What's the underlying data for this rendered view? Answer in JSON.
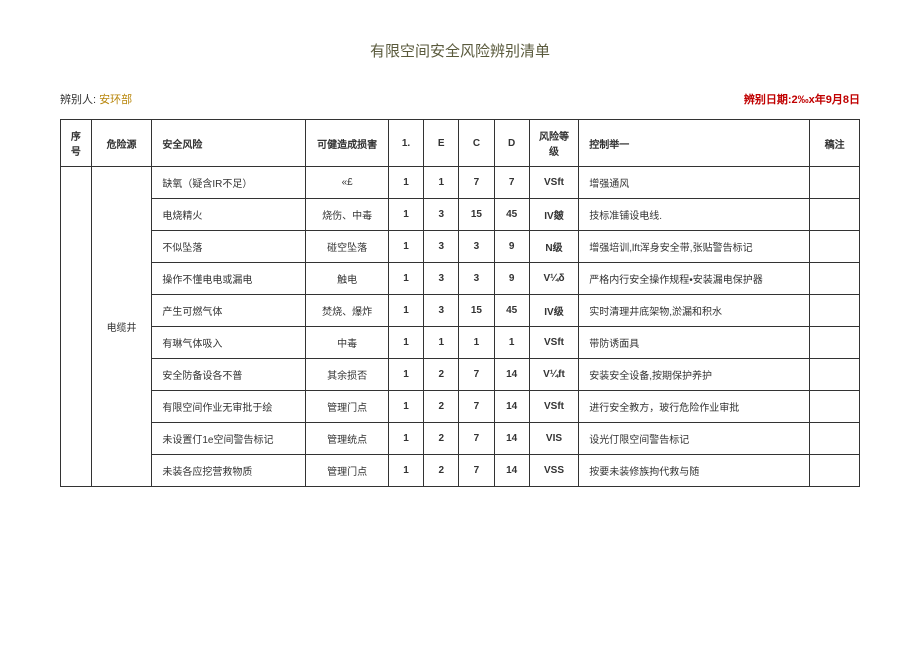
{
  "title": "有限空间安全风险辨别清单",
  "meta": {
    "identifier_label": "辨别人:",
    "identifier_value": "安环部",
    "date_label": "辨别日期:2‰x年9月8日"
  },
  "headers": {
    "seq": "序号",
    "source": "危险源",
    "risk": "安全风险",
    "harm": "可健造成损害",
    "col1": "1.",
    "colE": "E",
    "colC": "C",
    "colD": "D",
    "level": "风险等级",
    "measure": "控制举一",
    "note": "稿注"
  },
  "source_merged": "电缆井",
  "rows": [
    {
      "risk": "缺氧（疑含IR不足）",
      "harm": "«£",
      "c1": "1",
      "ce": "1",
      "cc": "7",
      "cd": "7",
      "level": "VSft",
      "measure": "增强通风"
    },
    {
      "risk": "电烧精火",
      "harm": "烧伤、中毒",
      "c1": "1",
      "ce": "3",
      "cc": "15",
      "cd": "45",
      "level": "IV皴",
      "measure": "技标准铺设电线."
    },
    {
      "risk": "不似坠落",
      "harm": "碰空坠落",
      "c1": "1",
      "ce": "3",
      "cc": "3",
      "cd": "9",
      "level": "N级",
      "measure": "增强培训,lft浑身安全带,张贴警告标记"
    },
    {
      "risk": "操作不懂电电或漏电",
      "harm": "触电",
      "c1": "1",
      "ce": "3",
      "cc": "3",
      "cd": "9",
      "level": "V¼δ",
      "measure": "严格内行安全操作规程•安装漏电保护器"
    },
    {
      "risk": "产生可燃气体",
      "harm": "焚烧、爆炸",
      "c1": "1",
      "ce": "3",
      "cc": "15",
      "cd": "45",
      "level": "IV级",
      "measure": "实时清理井底架物,淤漏和积水"
    },
    {
      "risk": "有琳气体吸入",
      "harm": "中毒",
      "c1": "1",
      "ce": "1",
      "cc": "1",
      "cd": "1",
      "level": "VSft",
      "measure": "带防诱面具"
    },
    {
      "risk": "安全防备设各不普",
      "harm": "其余损否",
      "c1": "1",
      "ce": "2",
      "cc": "7",
      "cd": "14",
      "level": "V¼ft",
      "measure": "安装安全设备,按期保护养护"
    },
    {
      "risk": "有限空间作业无审批于绘",
      "harm": "管理门点",
      "c1": "1",
      "ce": "2",
      "cc": "7",
      "cd": "14",
      "level": "VSft",
      "measure": "进行安全教方，玻行危险作业审批"
    },
    {
      "risk": "未设置仃1e空间警告标记",
      "harm": "管理统点",
      "c1": "1",
      "ce": "2",
      "cc": "7",
      "cd": "14",
      "level": "VIS",
      "measure": "设光仃限空间警告标记"
    },
    {
      "risk": "未装各应挖营救物质",
      "harm": "管理门点",
      "c1": "1",
      "ce": "2",
      "cc": "7",
      "cd": "14",
      "level": "VSS",
      "measure": "按要未装修族拘代救与随"
    }
  ]
}
